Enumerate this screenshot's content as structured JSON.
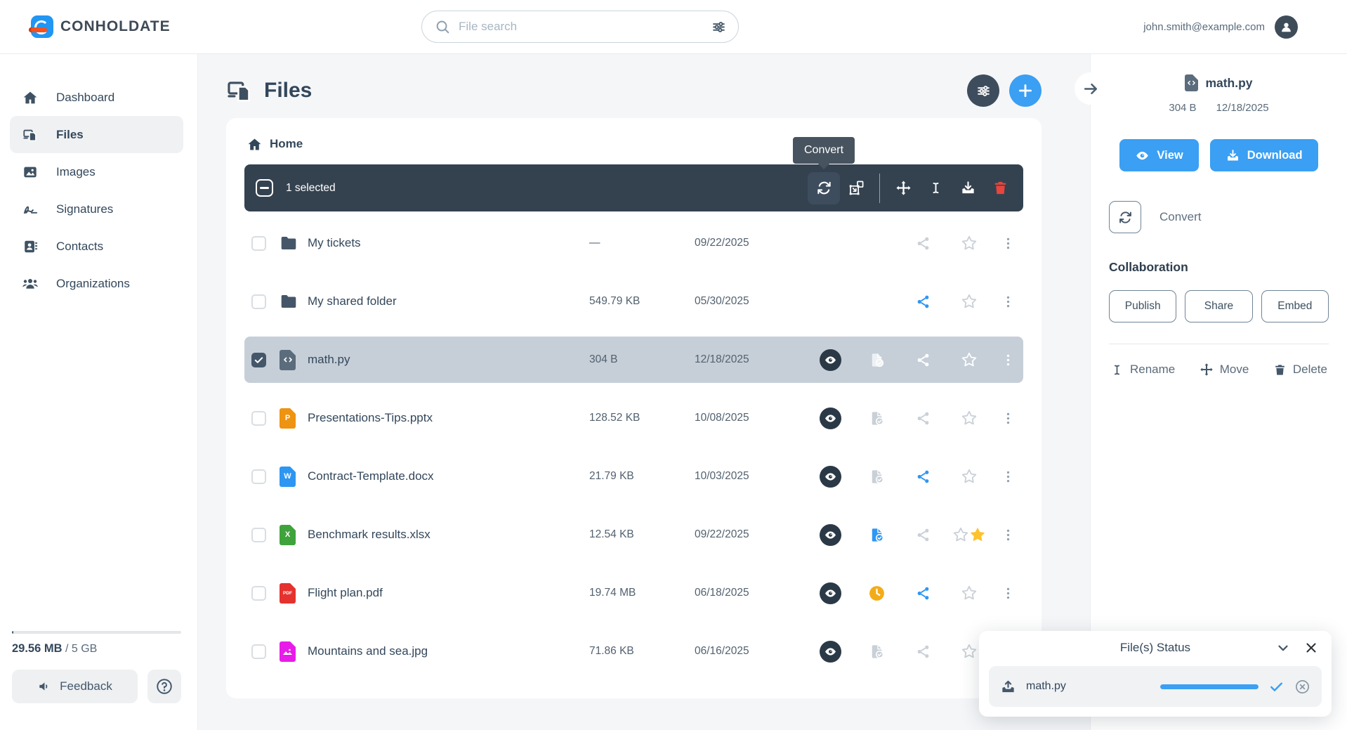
{
  "topbar": {
    "brand": "CONHOLDATE",
    "search_placeholder": "File search",
    "user_email": "john.smith@example.com"
  },
  "sidebar": {
    "items": [
      {
        "label": "Dashboard",
        "icon": "home-icon",
        "active": false
      },
      {
        "label": "Files",
        "icon": "files-icon",
        "active": true
      },
      {
        "label": "Images",
        "icon": "image-icon",
        "active": false
      },
      {
        "label": "Signatures",
        "icon": "signature-icon",
        "active": false
      },
      {
        "label": "Contacts",
        "icon": "contacts-icon",
        "active": false
      },
      {
        "label": "Organizations",
        "icon": "organizations-icon",
        "active": false
      }
    ],
    "storage": {
      "used_label": "29.56 MB",
      "total_label": "/ 5 GB",
      "used_percent": 1
    },
    "feedback_label": "Feedback"
  },
  "main": {
    "title": "Files",
    "breadcrumb_home": "Home",
    "toolbar": {
      "selected_text": "1 selected",
      "tooltip": "Convert"
    },
    "rows": [
      {
        "name": "My tickets",
        "size": "—",
        "date": "09/22/2025",
        "type": "folder",
        "eye": false,
        "status": "none",
        "share": "gray",
        "star": "outline",
        "selected": false
      },
      {
        "name": "My shared folder",
        "size": "549.79 KB",
        "date": "05/30/2025",
        "type": "folder",
        "eye": false,
        "status": "none",
        "share": "blue",
        "star": "outline",
        "selected": false
      },
      {
        "name": "math.py",
        "size": "304 B",
        "date": "12/18/2025",
        "type": "code",
        "eye": true,
        "status": "gray",
        "share": "gray",
        "star": "outline",
        "selected": true
      },
      {
        "name": "Presentations-Tips.pptx",
        "size": "128.52 KB",
        "date": "10/08/2025",
        "type": "pptx",
        "eye": true,
        "status": "gray",
        "share": "gray",
        "star": "outline",
        "selected": false
      },
      {
        "name": "Contract-Template.docx",
        "size": "21.79 KB",
        "date": "10/03/2025",
        "type": "docx",
        "eye": true,
        "status": "gray",
        "share": "blue",
        "star": "outline",
        "selected": false
      },
      {
        "name": "Benchmark results.xlsx",
        "size": "12.54 KB",
        "date": "09/22/2025",
        "type": "xlsx",
        "eye": true,
        "status": "blue",
        "share": "gray",
        "star": "filled",
        "selected": false
      },
      {
        "name": "Flight plan.pdf",
        "size": "19.74 MB",
        "date": "06/18/2025",
        "type": "pdf",
        "eye": true,
        "status": "clock",
        "share": "blue",
        "star": "outline",
        "selected": false
      },
      {
        "name": "Mountains and sea.jpg",
        "size": "71.86 KB",
        "date": "06/16/2025",
        "type": "jpg",
        "eye": true,
        "status": "gray",
        "share": "gray",
        "star": "outline",
        "selected": false
      }
    ]
  },
  "details": {
    "file_name": "math.py",
    "file_size": "304 B",
    "file_date": "12/18/2025",
    "view_label": "View",
    "download_label": "Download",
    "convert_label": "Convert",
    "collaboration_title": "Collaboration",
    "publish_label": "Publish",
    "share_label": "Share",
    "embed_label": "Embed",
    "rename_label": "Rename",
    "move_label": "Move",
    "delete_label": "Delete"
  },
  "status_panel": {
    "title": "File(s) Status",
    "file_name": "math.py",
    "progress_percent": 100
  },
  "colors": {
    "accent_blue": "#3b9ff3",
    "toolbar_dark": "#344250",
    "tooltip_bg": "#47535f",
    "selected_row": "#c6cfd8",
    "danger_red": "#e8453c",
    "star_yellow": "#fdc22d",
    "clock_orange": "#f3ac19",
    "share_blue": "#2f96f3",
    "icon_gray": "#c9d0d7",
    "pptx_orange": "#ee9312",
    "docx_blue": "#2c96f2",
    "xlsx_green": "#3fa33c",
    "pdf_red": "#e5322e",
    "jpg_magenta": "#e81ce8",
    "pycode_slate": "#5b6c7c",
    "folder_slate": "#455668"
  }
}
